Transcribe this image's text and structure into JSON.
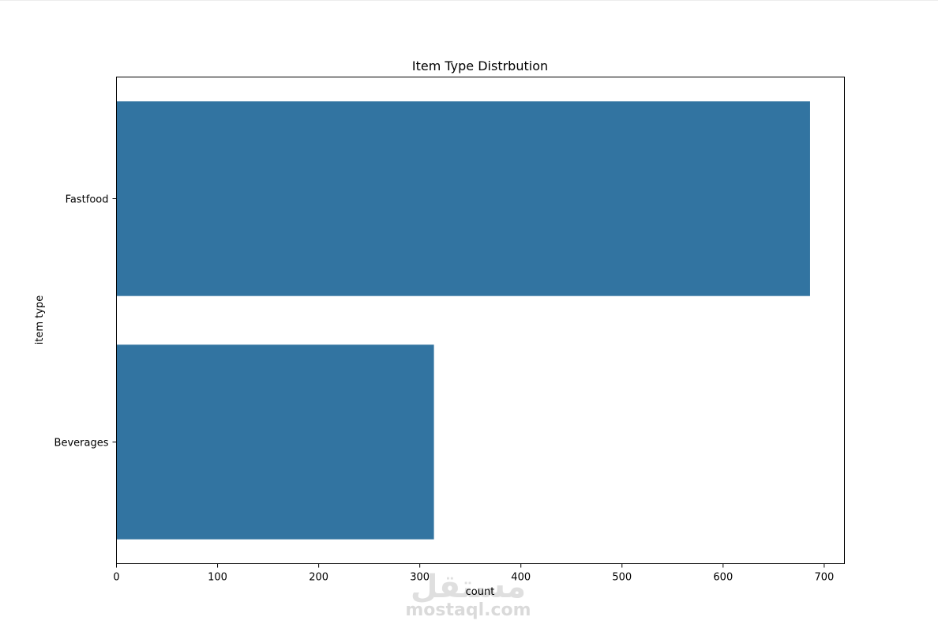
{
  "chart_data": {
    "type": "bar",
    "orientation": "horizontal",
    "title": "Item Type Distrbution",
    "xlabel": "count",
    "ylabel": "item type",
    "categories": [
      "Fastfood",
      "Beverages"
    ],
    "values": [
      686,
      314
    ],
    "xlim": [
      0,
      720
    ],
    "xticks": [
      0,
      100,
      200,
      300,
      400,
      500,
      600,
      700
    ],
    "bar_color": "#3274a1",
    "grid": false,
    "legend": "none"
  },
  "watermark": {
    "arabic": "مستقل",
    "latin": "mostaql.com"
  }
}
